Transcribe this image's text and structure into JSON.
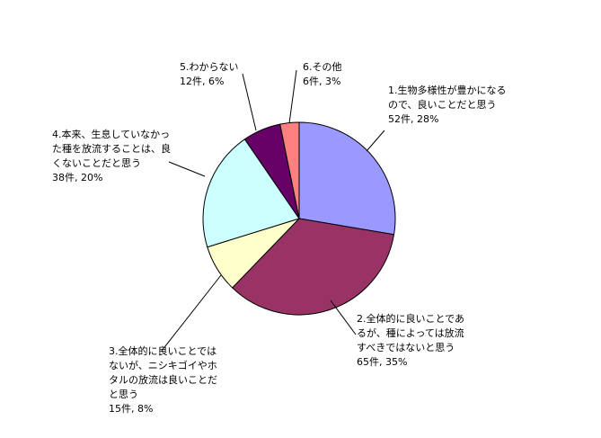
{
  "chart_data": {
    "type": "pie",
    "categories": [
      "1.生物多様性が豊かになるので、良いことだと思う",
      "2.全体的に良いことであるが、種によっては放流すべきではないと思う",
      "3.全体的に良いことではないが、ニシキゴイやホタルの放流は良いことだと思う",
      "4.本来、生息していなかった種を放流することは、良くないことだと思う",
      "5.わからない",
      "6.その他"
    ],
    "values": [
      52,
      65,
      15,
      38,
      12,
      6
    ],
    "value_labels": [
      "52件, 28%",
      "65件, 35%",
      "15件, 8%",
      "38件, 20%",
      "12件, 6%",
      "6件, 3%"
    ],
    "colors": [
      "#9999ff",
      "#993366",
      "#ffffcc",
      "#ccffff",
      "#660066",
      "#ff8080"
    ]
  }
}
